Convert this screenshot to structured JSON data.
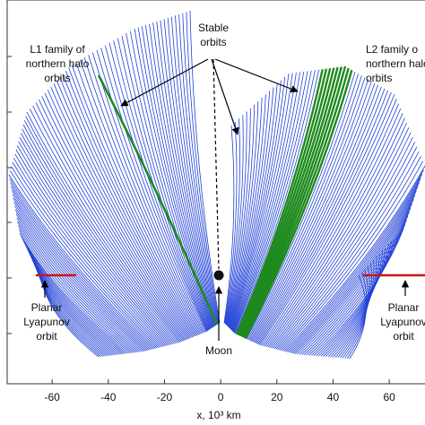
{
  "chart_data": {
    "type": "orbit-families",
    "xlabel": "x, 10³ km",
    "xlim": [
      -76,
      74
    ],
    "xticks": [
      -60,
      -40,
      -20,
      0,
      20,
      40,
      60
    ],
    "colors": {
      "family": "#1f3fd6",
      "stable": "#1e8a1e",
      "planar": "#c8141e"
    },
    "annotations": {
      "stable": [
        "Stable",
        "orbits"
      ],
      "l1": [
        "L1 family of",
        "northern halo",
        "orbits"
      ],
      "l2": [
        "L2 family o",
        "northern halo",
        "orbits"
      ],
      "planar_left": [
        "Planar",
        "Lyapunov",
        "orbit"
      ],
      "planar_right": [
        "Planar",
        "Lyapunov",
        "orbit"
      ],
      "moon": "Moon"
    }
  }
}
